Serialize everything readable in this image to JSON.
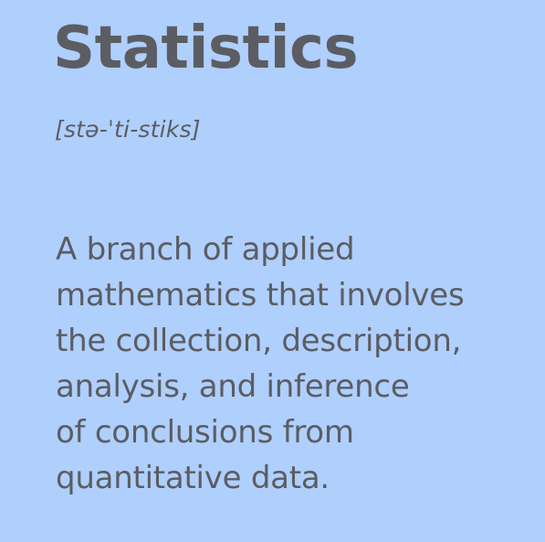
{
  "entry": {
    "term": "Statistics",
    "pronunciation": "[stə-ˈti-stiks]",
    "definition_lines": [
      "A branch of applied",
      "mathematics that involves",
      "the collection, description,",
      "analysis, and inference",
      "of conclusions from",
      "quantitative data."
    ]
  },
  "colors": {
    "background": "#afcffd",
    "text": "#5b5d62"
  }
}
